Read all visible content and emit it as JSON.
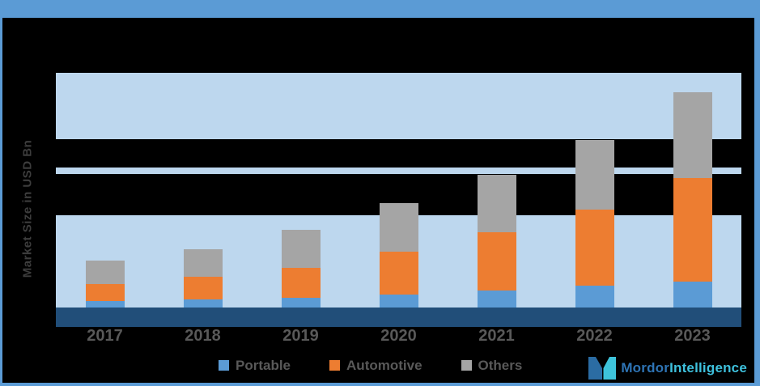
{
  "chart_data": {
    "type": "bar",
    "stacked": true,
    "title": "",
    "xlabel": "",
    "ylabel": "Market Size in USD Bn",
    "categories": [
      "2017",
      "2018",
      "2019",
      "2020",
      "2021",
      "2022",
      "2023"
    ],
    "series": [
      {
        "name": "Portable",
        "color": "#5B9BD5",
        "values": [
          8,
          10,
          12,
          16,
          21,
          27,
          32
        ]
      },
      {
        "name": "Automotive",
        "color": "#ED7D31",
        "values": [
          21,
          28,
          37,
          53,
          72,
          94,
          128
        ]
      },
      {
        "name": "Others",
        "color": "#A5A5A5",
        "values": [
          29,
          34,
          47,
          60,
          71,
          86,
          106
        ]
      }
    ],
    "value_units": "relative (y-axis tick labels not visible in image)",
    "grid": "horizontal light-blue bands on dark background",
    "legend_position": "bottom"
  },
  "legend": {
    "items": [
      {
        "label": "Portable",
        "color": "#5B9BD5"
      },
      {
        "label": "Automotive",
        "color": "#ED7D31"
      },
      {
        "label": "Others",
        "color": "#A5A5A5"
      }
    ]
  },
  "brand": {
    "name_part1": "Mordor",
    "name_part2": "Intelligence",
    "mark_color_left": "#2B6CA3",
    "mark_color_right": "#3EC3DA"
  },
  "colors": {
    "frame_accent": "#5B9BD5",
    "plot_band": "#BDD7EE",
    "axis_band": "#214E79",
    "label_text": "#595959",
    "background": "#000000"
  }
}
